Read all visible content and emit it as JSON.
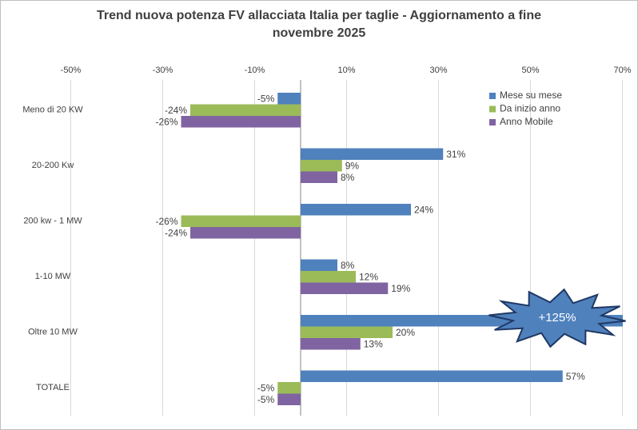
{
  "chart_data": {
    "type": "hbar",
    "title": "Trend nuova potenza FV allacciata Italia per taglie - Aggiornamento a fine novembre 2025",
    "categories": [
      "Meno di 20 KW",
      "20-200 Kw",
      "200 kw - 1 MW",
      "1-10 MW",
      "Oltre 10 MW",
      "TOTALE"
    ],
    "series": [
      {
        "name": "Mese su mese",
        "color": "#4f81bd",
        "values": [
          -5,
          31,
          24,
          8,
          125,
          57
        ],
        "value_labels": [
          "-5%",
          "31%",
          "24%",
          "8%",
          "+125%",
          "57%"
        ]
      },
      {
        "name": "Da inizio anno",
        "color": "#9bbb59",
        "values": [
          -24,
          9,
          -26,
          12,
          20,
          -5
        ],
        "value_labels": [
          "-24%",
          "9%",
          "-26%",
          "12%",
          "20%",
          "-5%"
        ]
      },
      {
        "name": "Anno Mobile",
        "color": "#8064a2",
        "values": [
          -26,
          8,
          -24,
          19,
          13,
          -5
        ],
        "value_labels": [
          "-26%",
          "8%",
          "-24%",
          "19%",
          "13%",
          "-5%"
        ]
      }
    ],
    "xlim": [
      -50,
      70
    ],
    "xticks": [
      {
        "value": -50,
        "label": "-50%"
      },
      {
        "value": -30,
        "label": "-30%"
      },
      {
        "value": -10,
        "label": "-10%"
      },
      {
        "value": 10,
        "label": "10%"
      },
      {
        "value": 30,
        "label": "30%"
      },
      {
        "value": 50,
        "label": "50%"
      },
      {
        "value": 70,
        "label": "70%"
      }
    ],
    "grid": true,
    "legend": "top-right"
  }
}
